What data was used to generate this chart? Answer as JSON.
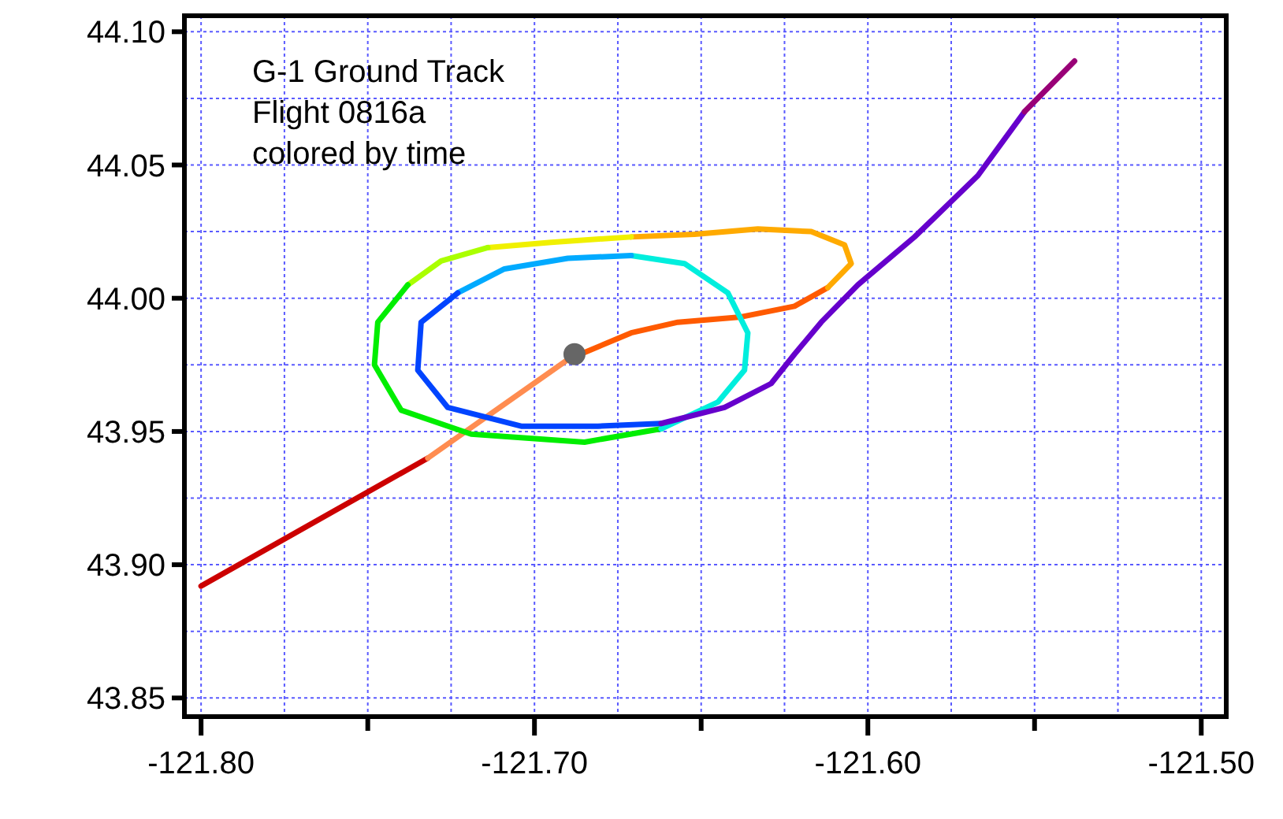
{
  "chart_data": {
    "type": "line",
    "xlim": [
      -121.805,
      -121.4925
    ],
    "ylim": [
      43.843,
      44.106
    ],
    "xticks": [
      {
        "value": -121.8,
        "label": "-121.80"
      },
      {
        "value": -121.775,
        "label": null
      },
      {
        "value": -121.75,
        "label": null
      },
      {
        "value": -121.725,
        "label": null
      },
      {
        "value": -121.7,
        "label": "-121.70"
      },
      {
        "value": -121.675,
        "label": null
      },
      {
        "value": -121.65,
        "label": null
      },
      {
        "value": -121.625,
        "label": null
      },
      {
        "value": -121.6,
        "label": "-121.60"
      },
      {
        "value": -121.575,
        "label": null
      },
      {
        "value": -121.55,
        "label": null
      },
      {
        "value": -121.525,
        "label": null
      },
      {
        "value": -121.5,
        "label": "-121.50"
      }
    ],
    "yticks": [
      43.85,
      {
        "value": 43.875,
        "label": null
      },
      {
        "value": 43.9,
        "label": "43.90"
      },
      {
        "value": 43.925,
        "label": null
      },
      43.95,
      {
        "value": 43.975,
        "label": null
      },
      {
        "value": 44,
        "label": "44.00"
      },
      {
        "value": 44.025,
        "label": null
      },
      44.05,
      {
        "value": 44.075,
        "label": null
      },
      {
        "value": 44.1,
        "label": "44.10"
      }
    ],
    "grid": true,
    "line_style": "solid",
    "annotations": [
      "G-1 Ground Track",
      "Flight 0816a",
      "colored by time"
    ],
    "series": [
      {
        "type": "line",
        "color": "#cc0000",
        "x": [
          -121.8,
          -121.732
        ],
        "values": [
          43.892,
          43.94
        ]
      },
      {
        "type": "line",
        "color": "#ff8c50",
        "x": [
          -121.732,
          -121.69
        ],
        "values": [
          43.94,
          43.977
        ]
      },
      {
        "type": "line",
        "color": "#ff5a00",
        "x": [
          -121.69,
          -121.671,
          -121.657,
          -121.638,
          -121.622,
          -121.612
        ],
        "values": [
          43.977,
          43.987,
          43.991,
          43.993,
          43.997,
          44.004
        ]
      },
      {
        "type": "line",
        "color": "#ffaa00",
        "x": [
          -121.612,
          -121.605,
          -121.607,
          -121.617,
          -121.633,
          -121.652,
          -121.671
        ],
        "values": [
          44.004,
          44.013,
          44.02,
          44.025,
          44.026,
          44.024,
          44.023
        ]
      },
      {
        "type": "line",
        "color": "#f0f000",
        "x": [
          -121.671,
          -121.695,
          -121.714
        ],
        "values": [
          44.023,
          44.021,
          44.019
        ]
      },
      {
        "type": "line",
        "color": "#aaff00",
        "x": [
          -121.714,
          -121.728,
          -121.738
        ],
        "values": [
          44.019,
          44.014,
          44.005
        ]
      },
      {
        "type": "line",
        "color": "#00ee00",
        "x": [
          -121.738,
          -121.747,
          -121.748,
          -121.74,
          -121.719,
          -121.685,
          -121.662
        ],
        "values": [
          44.005,
          43.991,
          43.975,
          43.958,
          43.949,
          43.946,
          43.951
        ]
      },
      {
        "type": "line",
        "color": "#00eedd",
        "x": [
          -121.662,
          -121.645,
          -121.637,
          -121.636,
          -121.642,
          -121.655,
          -121.671
        ],
        "values": [
          43.951,
          43.961,
          43.973,
          43.987,
          44.002,
          44.013,
          44.016
        ]
      },
      {
        "type": "line",
        "color": "#00aaff",
        "x": [
          -121.671,
          -121.69,
          -121.709,
          -121.723
        ],
        "values": [
          44.016,
          44.015,
          44.011,
          44.002
        ]
      },
      {
        "type": "line",
        "color": "#0044ff",
        "x": [
          -121.723,
          -121.734,
          -121.735,
          -121.726,
          -121.704,
          -121.681,
          -121.662
        ],
        "values": [
          44.002,
          43.991,
          43.973,
          43.959,
          43.952,
          43.952,
          43.953
        ]
      },
      {
        "type": "line",
        "color": "#6600cc",
        "x": [
          -121.662,
          -121.643,
          -121.629,
          -121.622,
          -121.614,
          -121.603,
          -121.586,
          -121.567,
          -121.553
        ],
        "values": [
          43.953,
          43.959,
          43.968,
          43.979,
          43.991,
          44.005,
          44.023,
          44.046,
          44.07
        ]
      },
      {
        "type": "line",
        "color": "#990077",
        "x": [
          -121.553,
          -121.538
        ],
        "values": [
          44.07,
          44.089
        ]
      },
      {
        "type": "scatter",
        "color": "#666666",
        "marker": "circle",
        "x": [
          -121.688
        ],
        "values": [
          43.979
        ]
      }
    ]
  }
}
